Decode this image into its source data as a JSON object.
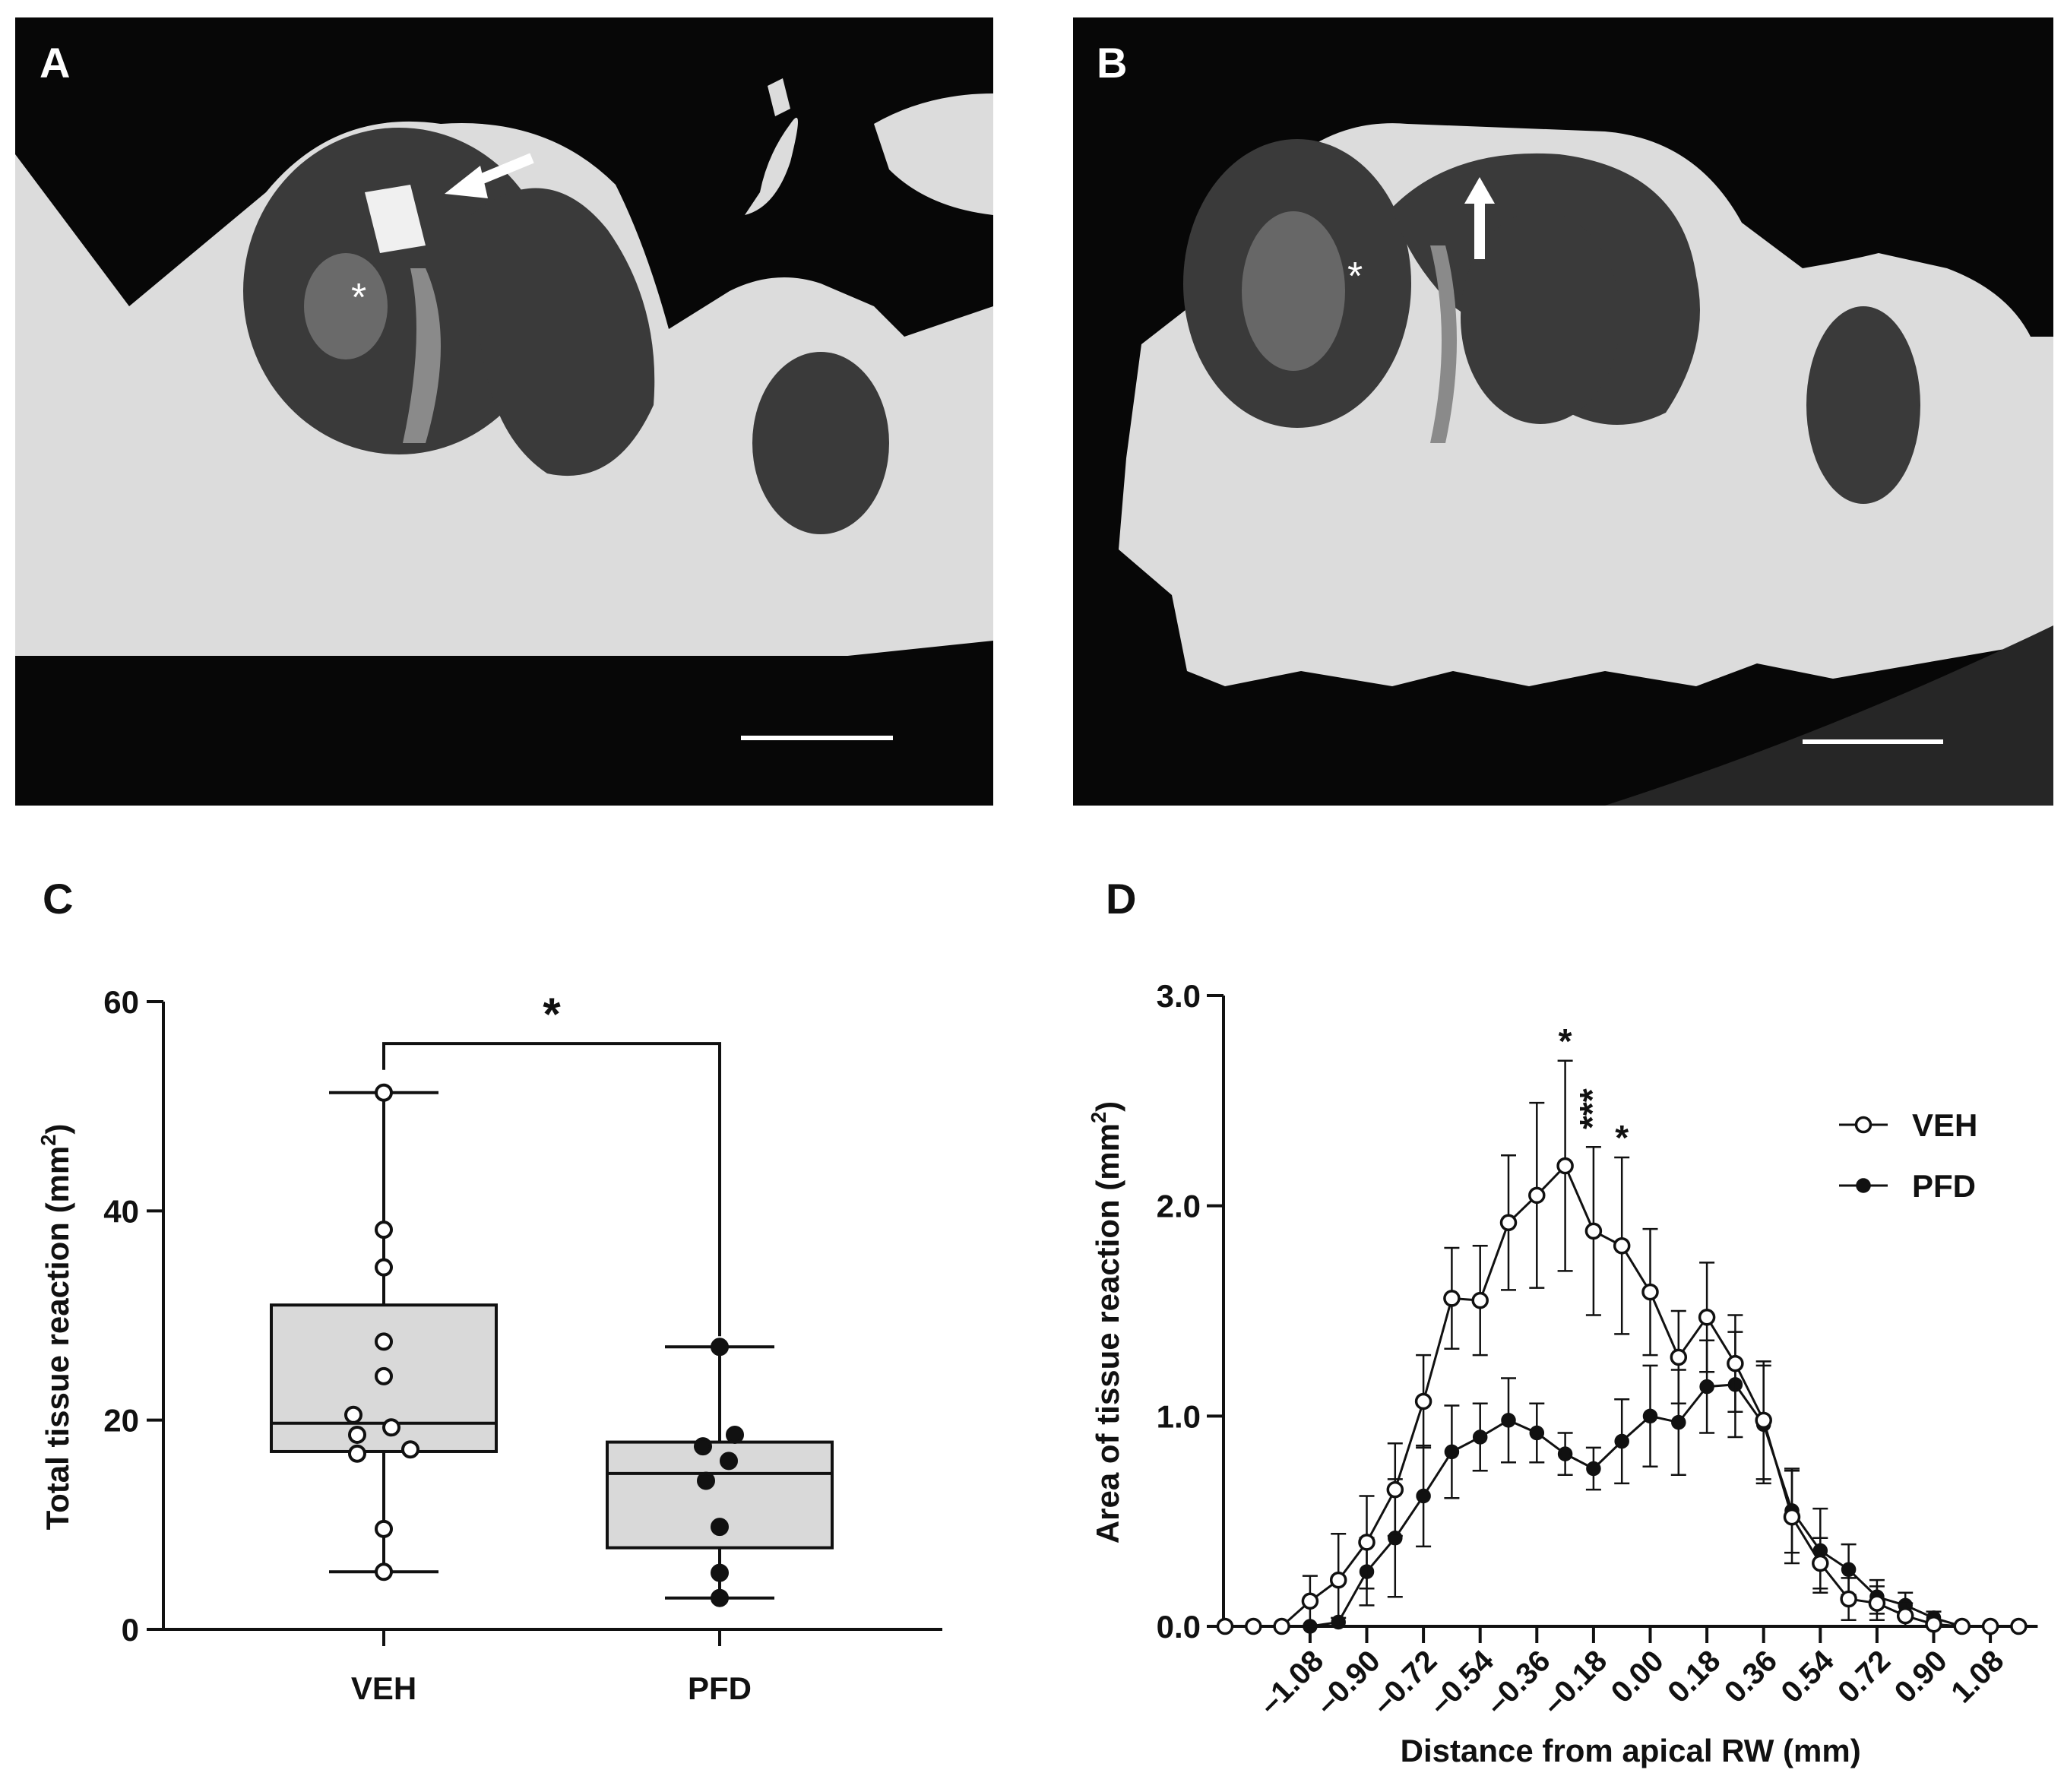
{
  "panels": {
    "A": {
      "letter": "A",
      "marker": "*"
    },
    "B": {
      "letter": "B",
      "marker": "*"
    },
    "C": {
      "letter": "C"
    },
    "D": {
      "letter": "D"
    }
  },
  "colors": {
    "box_fill": "#d9d9d9",
    "line": "#111111",
    "image_bg": "#070707",
    "bone": "#dcdcdc"
  },
  "chart_data": [
    {
      "panel": "C",
      "type": "box",
      "ylabel": "Total tissue reaction (mm²)",
      "ylim": [
        0,
        60
      ],
      "yticks": [
        0,
        20,
        40,
        60
      ],
      "categories": [
        "VEH",
        "PFD"
      ],
      "significance": {
        "label": "*",
        "between": [
          "VEH",
          "PFD"
        ]
      },
      "series": [
        {
          "name": "VEH",
          "marker": "open-circle",
          "box": {
            "min": 5.5,
            "q1": 17,
            "median": 19.7,
            "q3": 31,
            "max": 51.3
          },
          "points": [
            51.3,
            38.2,
            34.6,
            27.5,
            24.2,
            20.5,
            19.3,
            18.6,
            17.2,
            16.8,
            9.6,
            5.5
          ]
        },
        {
          "name": "PFD",
          "marker": "filled-circle",
          "box": {
            "min": 3.0,
            "q1": 7.8,
            "median": 14.9,
            "q3": 17.9,
            "max": 27.0
          },
          "points": [
            27.0,
            18.6,
            17.5,
            16.1,
            14.2,
            9.8,
            5.4,
            3.0
          ]
        }
      ]
    },
    {
      "panel": "D",
      "type": "line",
      "xlabel": "Distance from apical RW (mm)",
      "ylabel": "Area of tissue reaction (mm²)",
      "ylim": [
        0,
        3
      ],
      "yticks": [
        "0.0",
        "1.0",
        "2.0",
        "3.0"
      ],
      "xticks": [
        "-1.08",
        "-0.90",
        "-0.72",
        "-0.54",
        "-0.36",
        "-0.18",
        "0.00",
        "0.18",
        "0.36",
        "0.54",
        "0.72",
        "0.90",
        "1.08"
      ],
      "x": [
        -1.35,
        -1.26,
        -1.17,
        -1.08,
        -0.99,
        -0.9,
        -0.81,
        -0.72,
        -0.63,
        -0.54,
        -0.45,
        -0.36,
        -0.27,
        -0.18,
        -0.09,
        0.0,
        0.09,
        0.18,
        0.27,
        0.36,
        0.45,
        0.54,
        0.63,
        0.72,
        0.81,
        0.9,
        0.99,
        1.08,
        1.17
      ],
      "legend_position": "right",
      "significance": [
        {
          "x": -0.27,
          "label": "*"
        },
        {
          "x": -0.18,
          "label": "***"
        },
        {
          "x": -0.09,
          "label": "*"
        }
      ],
      "series": [
        {
          "name": "VEH",
          "marker": "open-circle",
          "values": [
            0,
            0,
            0,
            0.12,
            0.22,
            0.4,
            0.65,
            1.07,
            1.56,
            1.55,
            1.92,
            2.05,
            2.19,
            1.88,
            1.81,
            1.59,
            1.28,
            1.47,
            1.25,
            0.98,
            0.52,
            0.3,
            0.13,
            0.11,
            0.05,
            0.01,
            0,
            0,
            0
          ],
          "errors": [
            0,
            0,
            0,
            0.12,
            0.22,
            0.22,
            0.22,
            0.22,
            0.24,
            0.26,
            0.32,
            0.44,
            0.5,
            0.4,
            0.42,
            0.3,
            0.22,
            0.26,
            0.23,
            0.28,
            0.22,
            0.12,
            0.1,
            0.08,
            0.06,
            0.02,
            0,
            0,
            0
          ]
        },
        {
          "name": "PFD",
          "marker": "filled-circle",
          "values": [
            0,
            0,
            0,
            0,
            0.02,
            0.26,
            0.42,
            0.62,
            0.83,
            0.9,
            0.98,
            0.92,
            0.82,
            0.75,
            0.88,
            1.0,
            0.97,
            1.14,
            1.15,
            0.96,
            0.55,
            0.36,
            0.27,
            0.14,
            0.1,
            0.04,
            0,
            0,
            0
          ],
          "errors": [
            0,
            0,
            0,
            0,
            0.02,
            0.16,
            0.28,
            0.24,
            0.22,
            0.16,
            0.2,
            0.14,
            0.1,
            0.1,
            0.2,
            0.24,
            0.25,
            0.22,
            0.25,
            0.28,
            0.2,
            0.2,
            0.12,
            0.08,
            0.06,
            0.03,
            0,
            0,
            0
          ]
        }
      ]
    }
  ]
}
